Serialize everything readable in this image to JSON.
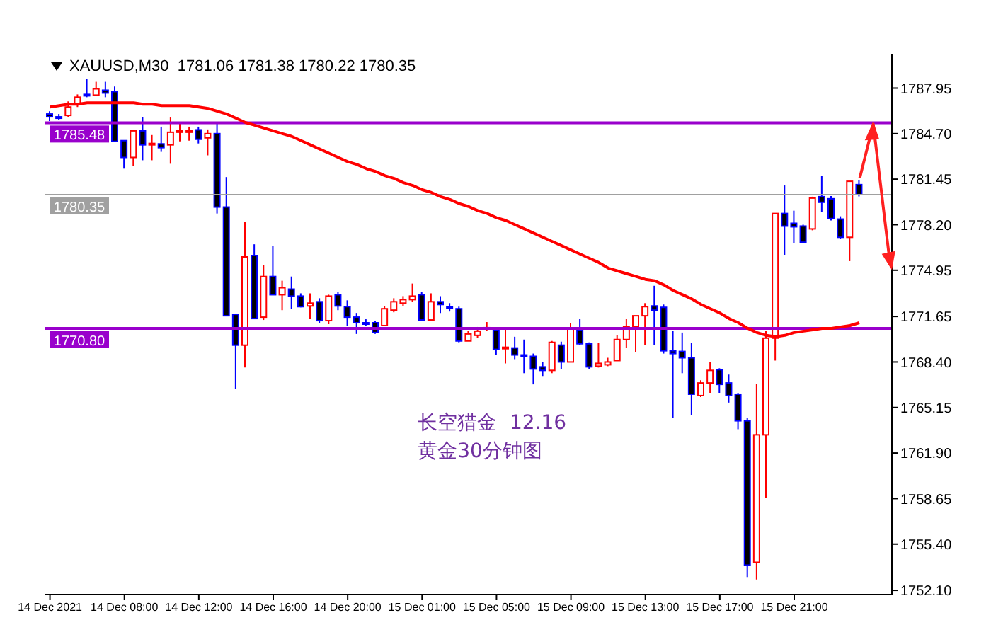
{
  "chart_data": {
    "type": "candlestick",
    "title": "XAUUSD,M30  1781.06 1781.38 1780.22 1780.35",
    "categories": [
      "14 Dec 2021",
      null,
      null,
      null,
      null,
      null,
      null,
      null,
      "14 Dec 08:00",
      null,
      null,
      null,
      null,
      null,
      null,
      null,
      "14 Dec 12:00",
      null,
      null,
      null,
      null,
      null,
      null,
      null,
      "14 Dec 16:00",
      null,
      null,
      null,
      null,
      null,
      null,
      null,
      "14 Dec 20:00",
      null,
      null,
      null,
      null,
      null,
      null,
      null,
      "15 Dec 01:00",
      null,
      null,
      null,
      null,
      null,
      null,
      null,
      "15 Dec 05:00",
      null,
      null,
      null,
      null,
      null,
      null,
      null,
      "15 Dec 09:00",
      null,
      null,
      null,
      null,
      null,
      null,
      null,
      "15 Dec 13:00",
      null,
      null,
      null,
      null,
      null,
      null,
      null,
      "15 Dec 17:00",
      null,
      null,
      null,
      null,
      null,
      null,
      null,
      "15 Dec 21:00",
      null,
      null,
      null,
      null,
      null,
      null,
      null
    ],
    "ohlc": [
      [
        1786.1,
        1786.3,
        1785.6,
        1785.9
      ],
      [
        1785.9,
        1786.1,
        1785.7,
        1785.8
      ],
      [
        1786.0,
        1787.0,
        1785.9,
        1786.6
      ],
      [
        1786.8,
        1787.5,
        1786.6,
        1787.3
      ],
      [
        1787.5,
        1788.6,
        1787.3,
        1787.4
      ],
      [
        1787.45,
        1788.4,
        1787.4,
        1787.9
      ],
      [
        1787.8,
        1788.4,
        1787.3,
        1787.6
      ],
      [
        1787.7,
        1788.06,
        1784.15,
        1784.15
      ],
      [
        1784.2,
        1784.2,
        1782.2,
        1783.0
      ],
      [
        1783.0,
        1784.9,
        1782.4,
        1784.9
      ],
      [
        1784.9,
        1785.9,
        1782.8,
        1783.9
      ],
      [
        1783.97,
        1784.6,
        1782.8,
        1784.0
      ],
      [
        1783.97,
        1785.2,
        1783.4,
        1783.7
      ],
      [
        1783.9,
        1785.85,
        1782.55,
        1784.8
      ],
      [
        1784.8,
        1785.4,
        1784.15,
        1784.9
      ],
      [
        1784.85,
        1785.2,
        1784.2,
        1784.9
      ],
      [
        1784.97,
        1785.2,
        1784.0,
        1784.3
      ],
      [
        1784.4,
        1785.0,
        1783.15,
        1784.7
      ],
      [
        1784.7,
        1785.5,
        1779.0,
        1779.46
      ],
      [
        1779.46,
        1781.6,
        1771.7,
        1771.7
      ],
      [
        1771.8,
        1771.8,
        1766.5,
        1769.6
      ],
      [
        1769.6,
        1778.4,
        1768.0,
        1775.9
      ],
      [
        1776.0,
        1776.8,
        1771.5,
        1771.5
      ],
      [
        1771.6,
        1775.3,
        1771.4,
        1774.5
      ],
      [
        1774.5,
        1776.7,
        1773.2,
        1773.2
      ],
      [
        1773.2,
        1774.2,
        1772.1,
        1773.7
      ],
      [
        1773.6,
        1774.5,
        1772.2,
        1773.1
      ],
      [
        1773.1,
        1773.3,
        1772.3,
        1772.35
      ],
      [
        1772.4,
        1773.3,
        1771.5,
        1772.6
      ],
      [
        1772.7,
        1772.95,
        1771.2,
        1771.35
      ],
      [
        1771.35,
        1773.2,
        1771.1,
        1773.1
      ],
      [
        1773.2,
        1773.4,
        1772.1,
        1772.4
      ],
      [
        1772.35,
        1772.8,
        1771.0,
        1771.6
      ],
      [
        1771.6,
        1771.9,
        1770.4,
        1771.2
      ],
      [
        1771.2,
        1771.45,
        1771.0,
        1771.15
      ],
      [
        1771.2,
        1771.35,
        1770.4,
        1770.5
      ],
      [
        1771.0,
        1772.4,
        1771.0,
        1772.2
      ],
      [
        1772.1,
        1772.95,
        1771.95,
        1772.7
      ],
      [
        1772.6,
        1773.1,
        1772.4,
        1772.85
      ],
      [
        1772.85,
        1774.0,
        1772.7,
        1773.1
      ],
      [
        1773.2,
        1773.4,
        1771.35,
        1771.4
      ],
      [
        1771.4,
        1773.3,
        1771.4,
        1772.7
      ],
      [
        1772.7,
        1773.1,
        1771.9,
        1772.5
      ],
      [
        1772.35,
        1772.6,
        1772.0,
        1772.25
      ],
      [
        1772.2,
        1772.35,
        1769.8,
        1769.9
      ],
      [
        1769.9,
        1770.6,
        1769.9,
        1770.4
      ],
      [
        1770.3,
        1770.9,
        1770.1,
        1770.6
      ],
      [
        1770.8,
        1771.25,
        1770.6,
        1770.85
      ],
      [
        1770.7,
        1770.8,
        1768.9,
        1769.3
      ],
      [
        1769.4,
        1770.7,
        1768.3,
        1769.45
      ],
      [
        1769.4,
        1770.2,
        1768.6,
        1768.9
      ],
      [
        1768.9,
        1770.0,
        1767.6,
        1768.85
      ],
      [
        1768.8,
        1769.0,
        1766.8,
        1767.9
      ],
      [
        1768.05,
        1768.4,
        1767.4,
        1767.8
      ],
      [
        1767.8,
        1769.9,
        1767.6,
        1769.8
      ],
      [
        1769.6,
        1769.85,
        1767.9,
        1768.4
      ],
      [
        1768.4,
        1771.2,
        1768.4,
        1770.75
      ],
      [
        1770.7,
        1771.5,
        1769.6,
        1769.7
      ],
      [
        1769.7,
        1769.8,
        1767.9,
        1768.05
      ],
      [
        1768.1,
        1769.75,
        1768.0,
        1768.3
      ],
      [
        1768.2,
        1768.7,
        1768.1,
        1768.4
      ],
      [
        1768.5,
        1770.3,
        1768.5,
        1770.0
      ],
      [
        1770.0,
        1771.5,
        1769.4,
        1770.9
      ],
      [
        1770.9,
        1771.7,
        1769.1,
        1771.7
      ],
      [
        1771.7,
        1772.6,
        1769.6,
        1772.35
      ],
      [
        1772.4,
        1773.84,
        1769.6,
        1772.1
      ],
      [
        1772.3,
        1772.5,
        1769.0,
        1769.2
      ],
      [
        1769.2,
        1770.6,
        1764.4,
        1769.0
      ],
      [
        1769.15,
        1770.5,
        1767.6,
        1768.7
      ],
      [
        1768.7,
        1769.75,
        1764.6,
        1766.1
      ],
      [
        1766.0,
        1767.1,
        1765.9,
        1766.9
      ],
      [
        1766.9,
        1768.4,
        1766.2,
        1767.8
      ],
      [
        1767.85,
        1767.95,
        1766.2,
        1766.8
      ],
      [
        1766.9,
        1767.5,
        1765.5,
        1766.0
      ],
      [
        1766.1,
        1766.2,
        1763.6,
        1764.2
      ],
      [
        1764.2,
        1764.4,
        1753.05,
        1753.9
      ],
      [
        1754.1,
        1766.8,
        1752.87,
        1763.2
      ],
      [
        1763.2,
        1770.6,
        1758.7,
        1770.1
      ],
      [
        1770.1,
        1779.0,
        1768.5,
        1779.0
      ],
      [
        1779.0,
        1781.0,
        1776.05,
        1778.1
      ],
      [
        1778.3,
        1779.2,
        1776.9,
        1778.05
      ],
      [
        1778.1,
        1778.2,
        1776.95,
        1776.95
      ],
      [
        1777.9,
        1780.2,
        1777.8,
        1780.1
      ],
      [
        1780.2,
        1781.66,
        1779.1,
        1779.8
      ],
      [
        1780.05,
        1780.24,
        1778.5,
        1778.64
      ],
      [
        1778.6,
        1778.8,
        1777.2,
        1777.3
      ],
      [
        1777.3,
        1781.3,
        1775.6,
        1781.3
      ],
      [
        1781.06,
        1781.38,
        1780.22,
        1780.35
      ]
    ],
    "colors": [
      "#0000ff",
      "#0000ff",
      "#ff0000",
      "#ff0000",
      "#0000ff",
      "#ff0000",
      "#0000ff",
      "#0000ff",
      "#0000ff",
      "#ff0000",
      "#0000ff",
      "#ff0000",
      "#0000ff",
      "#ff0000",
      "#ff0000",
      "#ff0000",
      "#0000ff",
      "#ff0000",
      "#0000ff",
      "#0000ff",
      "#0000ff",
      "#ff0000",
      "#0000ff",
      "#ff0000",
      "#0000ff",
      "#ff0000",
      "#0000ff",
      "#0000ff",
      "#ff0000",
      "#0000ff",
      "#ff0000",
      "#0000ff",
      "#0000ff",
      "#0000ff",
      "#0000ff",
      "#0000ff",
      "#ff0000",
      "#ff0000",
      "#ff0000",
      "#ff0000",
      "#0000ff",
      "#ff0000",
      "#0000ff",
      "#0000ff",
      "#0000ff",
      "#ff0000",
      "#ff0000",
      "#ff0000",
      "#0000ff",
      "#ff0000",
      "#0000ff",
      "#0000ff",
      "#0000ff",
      "#0000ff",
      "#ff0000",
      "#0000ff",
      "#ff0000",
      "#0000ff",
      "#0000ff",
      "#ff0000",
      "#ff0000",
      "#ff0000",
      "#ff0000",
      "#ff0000",
      "#ff0000",
      "#0000ff",
      "#0000ff",
      "#0000ff",
      "#0000ff",
      "#0000ff",
      "#ff0000",
      "#ff0000",
      "#0000ff",
      "#0000ff",
      "#0000ff",
      "#0000ff",
      "#ff0000",
      "#ff0000",
      "#ff0000",
      "#0000ff",
      "#0000ff",
      "#0000ff",
      "#ff0000",
      "#0000ff",
      "#0000ff",
      "#0000ff",
      "#ff0000",
      "#0000ff"
    ],
    "series": [
      {
        "type": "line",
        "color": "#ff0000",
        "values": [
          1786.6,
          1786.7,
          1786.8,
          1786.8,
          1786.9,
          1786.9,
          1786.9,
          1786.9,
          1786.9,
          1786.9,
          1786.8,
          1786.8,
          1786.7,
          1786.7,
          1786.7,
          1786.7,
          1786.6,
          1786.5,
          1786.3,
          1786.1,
          1785.8,
          1785.5,
          1785.3,
          1785.1,
          1784.9,
          1784.7,
          1784.5,
          1784.2,
          1783.9,
          1783.6,
          1783.3,
          1783.0,
          1782.7,
          1782.5,
          1782.2,
          1782.0,
          1781.7,
          1781.5,
          1781.2,
          1781.0,
          1780.7,
          1780.5,
          1780.2,
          1780.0,
          1779.7,
          1779.5,
          1779.2,
          1779.0,
          1778.7,
          1778.5,
          1778.2,
          1777.9,
          1777.6,
          1777.3,
          1777.0,
          1776.7,
          1776.4,
          1776.1,
          1775.8,
          1775.5,
          1775.1,
          1774.9,
          1774.7,
          1774.5,
          1774.3,
          1774.2,
          1773.9,
          1773.5,
          1773.2,
          1772.9,
          1772.5,
          1772.2,
          1771.9,
          1771.5,
          1771.2,
          1770.8,
          1770.5,
          1770.3,
          1770.2,
          1770.3,
          1770.5,
          1770.6,
          1770.7,
          1770.8,
          1770.8,
          1770.9,
          1771.0,
          1771.2
        ]
      }
    ],
    "ylim": [
      1751.8,
      1790.4
    ],
    "yticks": [
      1787.95,
      {
        "value": 1784.7,
        "label": "1784.70"
      },
      1781.45,
      {
        "value": 1778.2,
        "label": "1778.20"
      },
      1774.95,
      1771.65,
      {
        "value": 1768.4,
        "label": "1768.40"
      },
      1765.15,
      {
        "value": 1761.9,
        "label": "1761.90"
      },
      1758.65,
      {
        "value": 1755.4,
        "label": "1755.40"
      },
      {
        "value": 1752.1,
        "label": "1752.10"
      }
    ],
    "ref_lines": [
      {
        "axis": "y",
        "value": 1785.48,
        "label": "1785.48",
        "color": "#9900cc"
      },
      {
        "axis": "y",
        "value": 1770.8,
        "label": "1770.80",
        "color": "#9900cc"
      },
      {
        "axis": "y",
        "value": 1780.35,
        "label": "1780.35",
        "color": "#a0a0a0"
      }
    ],
    "annotations": [
      "长空猎金  12.16",
      "黄金30分钟图"
    ]
  }
}
